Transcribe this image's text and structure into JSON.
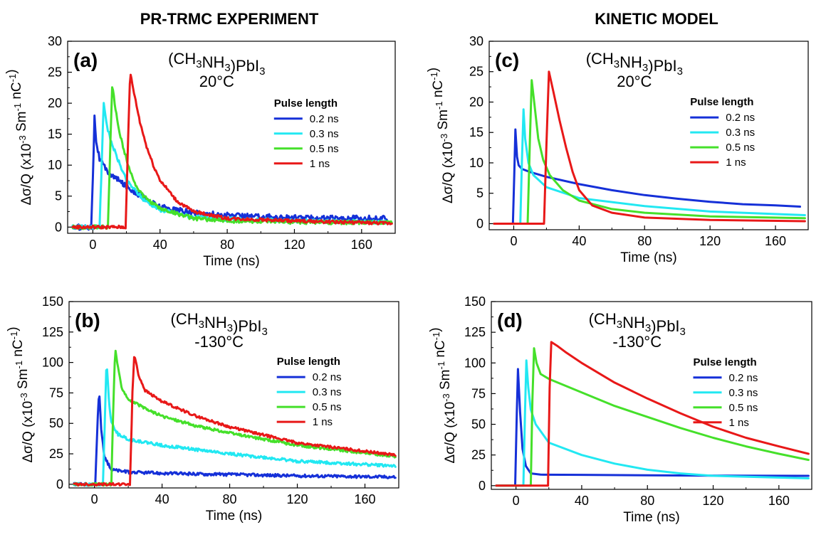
{
  "headers": {
    "left": "PR-TRMC EXPERIMENT",
    "right": "KINETIC MODEL"
  },
  "colors": {
    "0.2 ns": "#1530d8",
    "0.3 ns": "#22e8f2",
    "0.5 ns": "#45e02a",
    "1 ns": "#e81818"
  },
  "chart_data": [
    {
      "type": "line",
      "panel_label": "(a)",
      "compound": "(CH3NH3)PbI3",
      "temperature": "20°C",
      "xlabel": "Time (ns)",
      "ylabel": "Δσ/Q (x10-3 Sm-1 nC-1)",
      "xlim": [
        -15,
        180
      ],
      "ylim": [
        -1,
        30
      ],
      "xticks": [
        0,
        40,
        80,
        120,
        160
      ],
      "yticks": [
        0,
        5,
        10,
        15,
        20,
        25,
        30
      ],
      "legend_title": "Pulse length",
      "legend_position": "right",
      "series": [
        {
          "name": "0.2 ns",
          "color": "#1530d8",
          "noise": 0.45,
          "points": [
            [
              -12,
              0
            ],
            [
              -1,
              0
            ],
            [
              0.2,
              10
            ],
            [
              1,
              17.8
            ],
            [
              2,
              14
            ],
            [
              4,
              11
            ],
            [
              8,
              9.2
            ],
            [
              12,
              8.2
            ],
            [
              20,
              6.6
            ],
            [
              30,
              4.8
            ],
            [
              40,
              3.3
            ],
            [
              60,
              2.3
            ],
            [
              80,
              1.9
            ],
            [
              120,
              1.5
            ],
            [
              160,
              1.4
            ],
            [
              175,
              1.4
            ]
          ]
        },
        {
          "name": "0.3 ns",
          "color": "#22e8f2",
          "noise": 0.3,
          "points": [
            [
              -12,
              0
            ],
            [
              4,
              0
            ],
            [
              5.5,
              12
            ],
            [
              6.5,
              20.3
            ],
            [
              8,
              17
            ],
            [
              10,
              14.5
            ],
            [
              14,
              11.5
            ],
            [
              20,
              7.5
            ],
            [
              30,
              4.5
            ],
            [
              40,
              2.8
            ],
            [
              60,
              1.6
            ],
            [
              80,
              1.3
            ],
            [
              120,
              1.0
            ],
            [
              175,
              0.8
            ]
          ]
        },
        {
          "name": "0.5 ns",
          "color": "#45e02a",
          "noise": 0.3,
          "points": [
            [
              -12,
              0
            ],
            [
              9,
              0
            ],
            [
              10.5,
              14
            ],
            [
              11.5,
              22.8
            ],
            [
              13,
              20
            ],
            [
              16,
              15
            ],
            [
              20,
              11
            ],
            [
              25,
              7
            ],
            [
              30,
              5
            ],
            [
              40,
              3
            ],
            [
              60,
              1.4
            ],
            [
              80,
              1.0
            ],
            [
              120,
              0.8
            ],
            [
              178,
              0.7
            ]
          ]
        },
        {
          "name": "1 ns",
          "color": "#e81818",
          "noise": 0.25,
          "points": [
            [
              -12,
              0
            ],
            [
              19.5,
              0
            ],
            [
              21,
              14
            ],
            [
              22.2,
              25
            ],
            [
              25,
              21
            ],
            [
              28,
              17
            ],
            [
              32,
              13
            ],
            [
              36,
              10
            ],
            [
              40,
              7.6
            ],
            [
              50,
              4.2
            ],
            [
              60,
              2.5
            ],
            [
              80,
              1.4
            ],
            [
              120,
              1.0
            ],
            [
              178,
              0.6
            ]
          ]
        }
      ]
    },
    {
      "type": "line",
      "panel_label": "(b)",
      "compound": "(CH3NH3)PbI3",
      "temperature": "-130°C",
      "xlabel": "Time (ns)",
      "ylabel": "Δσ/Q (x10-3 Sm-1 nC-1)",
      "xlim": [
        -15,
        180
      ],
      "ylim": [
        -3,
        150
      ],
      "xticks": [
        0,
        40,
        80,
        120,
        160
      ],
      "yticks": [
        0,
        25,
        50,
        75,
        100,
        125,
        150
      ],
      "legend_title": "Pulse length",
      "legend_position": "right",
      "series": [
        {
          "name": "0.2 ns",
          "color": "#1530d8",
          "noise": 1.2,
          "points": [
            [
              -12,
              0
            ],
            [
              0.5,
              0
            ],
            [
              1.8,
              50
            ],
            [
              2.8,
              78
            ],
            [
              4,
              45
            ],
            [
              6,
              22
            ],
            [
              10,
              12
            ],
            [
              20,
              10
            ],
            [
              40,
              9
            ],
            [
              80,
              8
            ],
            [
              120,
              7
            ],
            [
              178,
              6
            ]
          ]
        },
        {
          "name": "0.3 ns",
          "color": "#22e8f2",
          "noise": 1.2,
          "points": [
            [
              -12,
              0
            ],
            [
              5,
              0
            ],
            [
              6.3,
              60
            ],
            [
              7.2,
              103
            ],
            [
              8.5,
              70
            ],
            [
              10,
              50
            ],
            [
              14,
              41
            ],
            [
              20,
              37
            ],
            [
              40,
              32
            ],
            [
              80,
              25
            ],
            [
              120,
              19
            ],
            [
              178,
              15
            ]
          ]
        },
        {
          "name": "0.5 ns",
          "color": "#45e02a",
          "noise": 1.1,
          "points": [
            [
              -12,
              0
            ],
            [
              10,
              0
            ],
            [
              11.3,
              70
            ],
            [
              12.3,
              112
            ],
            [
              14,
              95
            ],
            [
              16,
              80
            ],
            [
              20,
              70
            ],
            [
              30,
              62
            ],
            [
              40,
              56
            ],
            [
              60,
              48
            ],
            [
              80,
              42
            ],
            [
              120,
              32
            ],
            [
              178,
              23
            ]
          ]
        },
        {
          "name": "1 ns",
          "color": "#e81818",
          "noise": 1.0,
          "points": [
            [
              -12,
              0
            ],
            [
              21,
              0
            ],
            [
              22.5,
              75
            ],
            [
              23.6,
              107
            ],
            [
              26,
              90
            ],
            [
              30,
              77
            ],
            [
              40,
              68
            ],
            [
              60,
              56
            ],
            [
              80,
              47
            ],
            [
              120,
              34
            ],
            [
              178,
              24
            ]
          ]
        }
      ]
    },
    {
      "type": "line",
      "panel_label": "(c)",
      "compound": "(CH3NH3)PbI3",
      "temperature": "20°C",
      "xlabel": "Time (ns)",
      "ylabel": "Δσ/Q (x10-3 Sm-1 nC-1)",
      "xlim": [
        -15,
        180
      ],
      "ylim": [
        -1,
        30
      ],
      "xticks": [
        0,
        40,
        80,
        120,
        160
      ],
      "yticks": [
        0,
        5,
        10,
        15,
        20,
        25,
        30
      ],
      "legend_title": "Pulse length",
      "legend_position": "right",
      "series": [
        {
          "name": "0.2 ns",
          "color": "#1530d8",
          "noise": 0,
          "points": [
            [
              -12,
              0
            ],
            [
              -0.5,
              0
            ],
            [
              0.3,
              8
            ],
            [
              1,
              15.5
            ],
            [
              2,
              11
            ],
            [
              3,
              9.6
            ],
            [
              5,
              9.0
            ],
            [
              10,
              8.5
            ],
            [
              20,
              7.7
            ],
            [
              40,
              6.5
            ],
            [
              60,
              5.5
            ],
            [
              80,
              4.7
            ],
            [
              100,
              4.1
            ],
            [
              120,
              3.6
            ],
            [
              140,
              3.2
            ],
            [
              160,
              3.0
            ],
            [
              175,
              2.8
            ]
          ]
        },
        {
          "name": "0.3 ns",
          "color": "#22e8f2",
          "noise": 0,
          "points": [
            [
              -12,
              0
            ],
            [
              4,
              0
            ],
            [
              5,
              10
            ],
            [
              6,
              18.8
            ],
            [
              7,
              14
            ],
            [
              9,
              10
            ],
            [
              12,
              8
            ],
            [
              20,
              6.0
            ],
            [
              40,
              4.2
            ],
            [
              80,
              2.9
            ],
            [
              120,
              2.0
            ],
            [
              178,
              1.4
            ]
          ]
        },
        {
          "name": "0.5 ns",
          "color": "#45e02a",
          "noise": 0,
          "points": [
            [
              -12,
              0
            ],
            [
              8.5,
              0
            ],
            [
              9.8,
              13
            ],
            [
              11,
              23.6
            ],
            [
              12.5,
              20
            ],
            [
              15,
              14
            ],
            [
              18,
              10.5
            ],
            [
              22,
              8
            ],
            [
              30,
              5.5
            ],
            [
              40,
              3.8
            ],
            [
              60,
              2.4
            ],
            [
              80,
              1.8
            ],
            [
              120,
              1.2
            ],
            [
              178,
              0.9
            ]
          ]
        },
        {
          "name": "1 ns",
          "color": "#e81818",
          "noise": 0,
          "points": [
            [
              -12,
              0
            ],
            [
              18.5,
              0
            ],
            [
              20,
              13
            ],
            [
              21.5,
              25
            ],
            [
              24,
              22
            ],
            [
              28,
              17
            ],
            [
              32,
              12.5
            ],
            [
              36,
              8.5
            ],
            [
              40,
              5.5
            ],
            [
              48,
              3
            ],
            [
              60,
              1.8
            ],
            [
              80,
              1.0
            ],
            [
              120,
              0.6
            ],
            [
              178,
              0.4
            ]
          ]
        }
      ]
    },
    {
      "type": "line",
      "panel_label": "(d)",
      "compound": "(CH3NH3)PbI3",
      "temperature": "-130°C",
      "xlabel": "Time (ns)",
      "ylabel": "Δσ/Q (x10-3 Sm-1 nC-1)",
      "xlim": [
        -15,
        180
      ],
      "ylim": [
        -3,
        150
      ],
      "xticks": [
        0,
        40,
        80,
        120,
        160
      ],
      "yticks": [
        0,
        25,
        50,
        75,
        100,
        125,
        150
      ],
      "legend_title": "Pulse length",
      "legend_position": "right",
      "series": [
        {
          "name": "0.2 ns",
          "color": "#1530d8",
          "noise": 0,
          "points": [
            [
              -12,
              0
            ],
            [
              -0.5,
              0
            ],
            [
              0.5,
              60
            ],
            [
              1.2,
              95
            ],
            [
              2.5,
              60
            ],
            [
              4,
              30
            ],
            [
              6,
              16
            ],
            [
              9,
              10
            ],
            [
              15,
              9
            ],
            [
              40,
              8.8
            ],
            [
              80,
              8.5
            ],
            [
              120,
              8.2
            ],
            [
              178,
              8
            ]
          ]
        },
        {
          "name": "0.3 ns",
          "color": "#22e8f2",
          "noise": 0,
          "points": [
            [
              -12,
              0
            ],
            [
              4.5,
              0
            ],
            [
              5.5,
              60
            ],
            [
              6.3,
              102
            ],
            [
              7.5,
              80
            ],
            [
              9,
              62
            ],
            [
              12,
              50
            ],
            [
              20,
              35
            ],
            [
              40,
              25
            ],
            [
              60,
              18
            ],
            [
              80,
              13
            ],
            [
              100,
              10
            ],
            [
              120,
              8
            ],
            [
              178,
              6
            ]
          ]
        },
        {
          "name": "0.5 ns",
          "color": "#45e02a",
          "noise": 0,
          "points": [
            [
              -12,
              0
            ],
            [
              9,
              0
            ],
            [
              10,
              70
            ],
            [
              11,
              112
            ],
            [
              12.5,
              100
            ],
            [
              15,
              91
            ],
            [
              20,
              87
            ],
            [
              40,
              76
            ],
            [
              60,
              65
            ],
            [
              80,
              56
            ],
            [
              100,
              47
            ],
            [
              120,
              39
            ],
            [
              140,
              32
            ],
            [
              160,
              26
            ],
            [
              178,
              21
            ]
          ]
        },
        {
          "name": "1 ns",
          "color": "#e81818",
          "noise": 0,
          "points": [
            [
              -12,
              0
            ],
            [
              19.5,
              0
            ],
            [
              20.5,
              80
            ],
            [
              21.5,
              117
            ],
            [
              25,
              114
            ],
            [
              30,
              109
            ],
            [
              40,
              100
            ],
            [
              60,
              84
            ],
            [
              80,
              71
            ],
            [
              100,
              59
            ],
            [
              120,
              48
            ],
            [
              140,
              39
            ],
            [
              160,
              32
            ],
            [
              178,
              26
            ]
          ]
        }
      ]
    }
  ]
}
